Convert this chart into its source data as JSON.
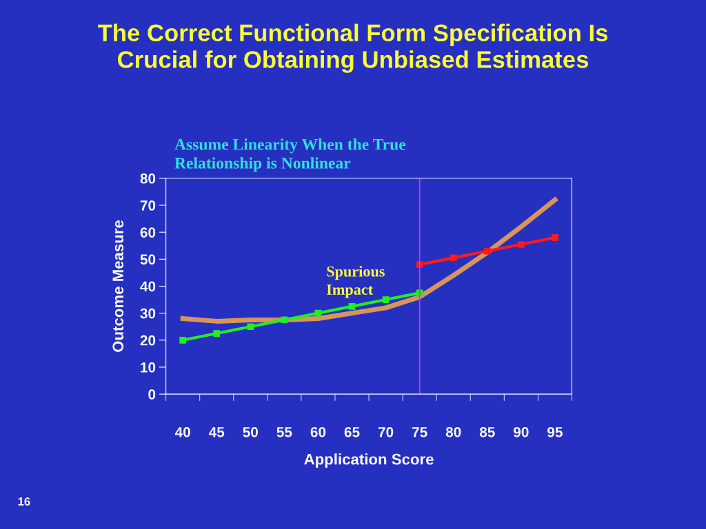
{
  "chart_data": {
    "type": "line",
    "title": "The Correct Functional Form Specification Is\nCrucial for Obtaining Unbiased Estimates",
    "subtitle": "Assume Linearity When the True\nRelationship is Nonlinear",
    "xlabel": "Application Score",
    "ylabel": "Outcome Measure",
    "categories": [
      "40",
      "45",
      "50",
      "55",
      "60",
      "65",
      "70",
      "75",
      "80",
      "85",
      "90",
      "95"
    ],
    "series": [
      {
        "color": "#d8945c",
        "marker": "none",
        "values": [
          28,
          27,
          27.5,
          27.5,
          28,
          30,
          32,
          36,
          44,
          52.5,
          62,
          72
        ]
      },
      {
        "color": "#22ee22",
        "marker": "square",
        "values": [
          20,
          22.5,
          25,
          27.5,
          30,
          32.5,
          35,
          37.5,
          null,
          null,
          null,
          null
        ]
      },
      {
        "color": "#ff1a1a",
        "marker": "square",
        "values": [
          null,
          null,
          null,
          null,
          null,
          null,
          null,
          48,
          50.5,
          53,
          55.5,
          58
        ]
      }
    ],
    "ylim": [
      0,
      80
    ],
    "yticks": [
      0,
      10,
      20,
      30,
      40,
      50,
      60,
      70,
      80
    ],
    "ref_lines": [
      {
        "axis": "x",
        "value": "75",
        "color": "#cc33ee"
      }
    ],
    "annotations": [
      "Spurious\nImpact",
      "16"
    ],
    "grid": false,
    "legend": false
  }
}
